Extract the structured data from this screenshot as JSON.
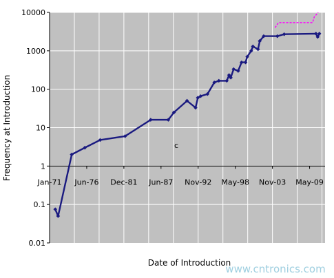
{
  "chart_data": {
    "type": "line",
    "xlabel": "Date of Introduction",
    "ylabel": "Frequency at Introduction",
    "yscale": "log",
    "ylim": [
      0.01,
      10000
    ],
    "xlim": [
      "1971-01",
      "2011-06"
    ],
    "x_tick_labels": [
      "Jan-71",
      "Jun-76",
      "Dec-81",
      "Jun-87",
      "Nov-92",
      "May-98",
      "Nov-03",
      "May-09"
    ],
    "y_tick_labels": [
      "0.01",
      "0.1",
      "1",
      "10",
      "100",
      "1000",
      "10000"
    ],
    "grid": true,
    "background": "#c0c0c0",
    "annotation": "c",
    "watermark": "www.cntronics.com",
    "series": [
      {
        "color": "#1a1a80",
        "style": "solid",
        "marker": "diamond",
        "points": [
          {
            "x": "1971-11",
            "y": 0.075
          },
          {
            "x": "1972-04",
            "y": 0.05
          },
          {
            "x": "1974-04",
            "y": 2.0
          },
          {
            "x": "1976-03",
            "y": 3.0
          },
          {
            "x": "1978-06",
            "y": 4.77
          },
          {
            "x": "1982-02",
            "y": 6.0
          },
          {
            "x": "1985-11",
            "y": 16.0
          },
          {
            "x": "1988-06",
            "y": 16.0
          },
          {
            "x": "1989-04",
            "y": 25.0
          },
          {
            "x": "1991-03",
            "y": 50.0
          },
          {
            "x": "1992-06",
            "y": 33.0
          },
          {
            "x": "1992-10",
            "y": 60.0
          },
          {
            "x": "1993-03",
            "y": 66.0
          },
          {
            "x": "1994-03",
            "y": 75.0
          },
          {
            "x": "1995-03",
            "y": 150.0
          },
          {
            "x": "1995-11",
            "y": 166.0
          },
          {
            "x": "1997-01",
            "y": 166.0
          },
          {
            "x": "1997-05",
            "y": 233.0
          },
          {
            "x": "1997-08",
            "y": 200.0
          },
          {
            "x": "1998-01",
            "y": 333.0
          },
          {
            "x": "1998-09",
            "y": 300.0
          },
          {
            "x": "1999-03",
            "y": 500.0
          },
          {
            "x": "1999-10",
            "y": 500.0
          },
          {
            "x": "2000-01",
            "y": 700.0
          },
          {
            "x": "2000-08",
            "y": 1000.0
          },
          {
            "x": "2000-11",
            "y": 1300.0
          },
          {
            "x": "2001-08",
            "y": 1100.0
          },
          {
            "x": "2001-11",
            "y": 1800.0
          },
          {
            "x": "2002-06",
            "y": 2400.0
          },
          {
            "x": "2004-06",
            "y": 2400.0
          },
          {
            "x": "2005-06",
            "y": 2700.0
          },
          {
            "x": "2010-02",
            "y": 2800.0
          },
          {
            "x": "2010-05",
            "y": 2300.0
          },
          {
            "x": "2010-08",
            "y": 2800.0
          }
        ]
      },
      {
        "color": "#ff00ff",
        "style": "dashed",
        "points": [
          {
            "x": "2004-02",
            "y": 4000.0
          },
          {
            "x": "2004-08",
            "y": 5400.0
          },
          {
            "x": "2009-08",
            "y": 5400.0
          },
          {
            "x": "2009-11",
            "y": 7600.0
          },
          {
            "x": "2010-06",
            "y": 10000.0
          }
        ]
      }
    ]
  }
}
